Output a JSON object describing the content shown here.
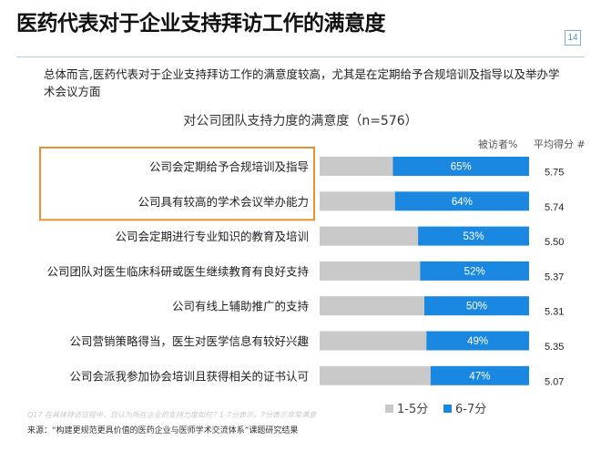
{
  "title": "医药代表对于企业支持拜访工作的满意度",
  "page_number": "14",
  "summary": "总体而言,医药代表对于企业支持拜访工作的满意度较高，尤其是在定期给予合规培训及指导以及举办学术会议方面",
  "col_head_pct": "被访者%",
  "col_head_avg": "平均得分 #",
  "faint_note": "Q17 在具体拜访过程中，您认为所在企业的支持力度如何？1-7分表示，7分表示非常满意",
  "source": "来源：“构建更规范更具价值的医药企业与医师学术交流体系”课题研究结果",
  "colors": {
    "blue": "#1a88e0",
    "gray": "#c9c9c9",
    "highlight": "#e8922e",
    "accent": "#5a93c9"
  },
  "chart_data": {
    "type": "bar",
    "title": "对公司团队支持力度的满意度（n=576）",
    "categories": [
      "公司会定期给予合规培训及指导",
      "公司具有较高的学术会议举办能力",
      "公司会定期进行专业知识的教育及培训",
      "公司团队对医生临床科研或医生继续教育有良好支持",
      "公司有线上辅助推广的支持",
      "公司营销策略得当，医生对医学信息有较好兴趣",
      "公司会派我参加协会培训且获得相关的证书认可"
    ],
    "series": [
      {
        "name": "1-5分",
        "values": [
          35,
          36,
          47,
          48,
          50,
          51,
          53
        ]
      },
      {
        "name": "6-7分",
        "values": [
          65,
          64,
          53,
          52,
          50,
          49,
          47
        ]
      }
    ],
    "data_labels": [
      "65%",
      "64%",
      "53%",
      "52%",
      "50%",
      "49%",
      "47%"
    ],
    "avg_scores": [
      "5.75",
      "5.74",
      "5.50",
      "5.37",
      "5.31",
      "5.35",
      "5.07"
    ],
    "highlighted_categories": [
      0,
      1
    ],
    "xlim": [
      0,
      100
    ],
    "legend": "bottom"
  }
}
